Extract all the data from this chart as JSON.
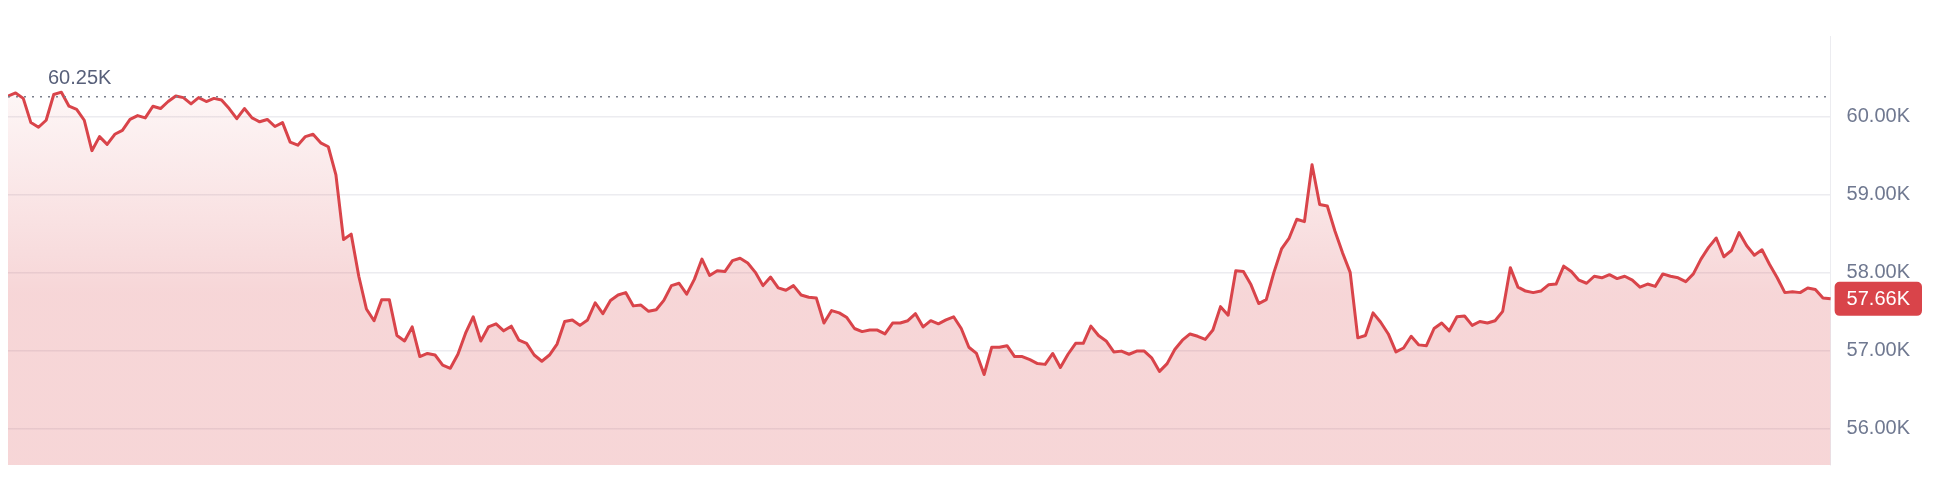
{
  "chart_data": {
    "type": "area",
    "categories": [
      null,
      null,
      null,
      null,
      null,
      null,
      null,
      null,
      null,
      null,
      null,
      null,
      null,
      null,
      null,
      null,
      null,
      null,
      null,
      null,
      null,
      null,
      null,
      null,
      null,
      null,
      null,
      null,
      null,
      null,
      null,
      null,
      null,
      null,
      null,
      null,
      null,
      null,
      null,
      null,
      null,
      null,
      null,
      null,
      null,
      null,
      null,
      null,
      null,
      null,
      null,
      null,
      null,
      null,
      null,
      null,
      null,
      null,
      null,
      null,
      null,
      null,
      null,
      null,
      null,
      null,
      null,
      null,
      null,
      null,
      null,
      null,
      null,
      null,
      null,
      null,
      null,
      null,
      null,
      null,
      null,
      null,
      null,
      null,
      null,
      null,
      null,
      null,
      null,
      null,
      null,
      null,
      null,
      null,
      null,
      null,
      null,
      null,
      null,
      null,
      null,
      null,
      null,
      null,
      null,
      null,
      null,
      null,
      null,
      null,
      null,
      null,
      null,
      null,
      null,
      null,
      null,
      null,
      null,
      null,
      null,
      null,
      null,
      null,
      null,
      null,
      null,
      null,
      null,
      null,
      null,
      null,
      null,
      null,
      null,
      null,
      null,
      null,
      null,
      null,
      null,
      null,
      null,
      null,
      null,
      null,
      null,
      null,
      null,
      null,
      null,
      null,
      null,
      null,
      null,
      null,
      null,
      null,
      null,
      null,
      null,
      null,
      null,
      null,
      null,
      null,
      null,
      null,
      null,
      null,
      null,
      null,
      null,
      null,
      null,
      null,
      null,
      null,
      null,
      null,
      null,
      null,
      null,
      null,
      null,
      null,
      null,
      null,
      null,
      null,
      null,
      null,
      null,
      null,
      null,
      null,
      null,
      null,
      null,
      null,
      null,
      null,
      null,
      null,
      null,
      null,
      null,
      null,
      null,
      null,
      null,
      null,
      null,
      null,
      null,
      null,
      null,
      null,
      null,
      null,
      null,
      null,
      null,
      null,
      null,
      null,
      null,
      null,
      null,
      null,
      null,
      null,
      null,
      null,
      null,
      null,
      null,
      null,
      null,
      null
    ],
    "series": [
      {
        "color": "#d9444a",
        "values": [
          60.26,
          60.3,
          60.23,
          59.92,
          59.86,
          59.95,
          60.28,
          60.31,
          60.13,
          60.09,
          59.95,
          59.56,
          59.74,
          59.64,
          59.77,
          59.82,
          59.96,
          60.01,
          59.98,
          60.13,
          60.1,
          60.19,
          60.26,
          60.24,
          60.16,
          60.24,
          60.19,
          60.23,
          60.21,
          60.1,
          59.97,
          60.1,
          59.98,
          59.93,
          59.96,
          59.87,
          59.92,
          59.67,
          59.63,
          59.74,
          59.77,
          59.66,
          59.61,
          59.25,
          58.42,
          58.49,
          57.95,
          57.53,
          57.38,
          57.65,
          57.65,
          57.19,
          57.12,
          57.3,
          56.92,
          56.96,
          56.94,
          56.81,
          56.77,
          56.95,
          57.22,
          57.43,
          57.12,
          57.3,
          57.34,
          57.25,
          57.31,
          57.13,
          57.09,
          56.94,
          56.86,
          56.94,
          57.08,
          57.37,
          57.39,
          57.32,
          57.39,
          57.61,
          57.47,
          57.64,
          57.71,
          57.74,
          57.57,
          57.58,
          57.5,
          57.52,
          57.64,
          57.83,
          57.86,
          57.72,
          57.91,
          58.17,
          57.96,
          58.02,
          58.01,
          58.15,
          58.18,
          58.12,
          58.0,
          57.83,
          57.94,
          57.8,
          57.77,
          57.83,
          57.71,
          57.68,
          57.67,
          57.35,
          57.51,
          57.48,
          57.42,
          57.28,
          57.24,
          57.26,
          57.26,
          57.21,
          57.35,
          57.35,
          57.38,
          57.47,
          57.3,
          57.38,
          57.34,
          57.39,
          57.43,
          57.28,
          57.04,
          56.96,
          56.69,
          57.04,
          57.04,
          57.06,
          56.92,
          56.92,
          56.88,
          56.83,
          56.82,
          56.96,
          56.78,
          56.95,
          57.09,
          57.09,
          57.31,
          57.19,
          57.12,
          56.98,
          56.99,
          56.95,
          56.99,
          56.99,
          56.9,
          56.73,
          56.83,
          57.01,
          57.13,
          57.21,
          57.18,
          57.14,
          57.26,
          57.56,
          57.45,
          58.02,
          58.01,
          57.84,
          57.6,
          57.65,
          58.0,
          58.3,
          58.44,
          58.68,
          58.65,
          59.38,
          58.87,
          58.85,
          58.53,
          58.25,
          58.0,
          57.16,
          57.19,
          57.48,
          57.36,
          57.21,
          56.98,
          57.03,
          57.18,
          57.07,
          57.06,
          57.28,
          57.35,
          57.25,
          57.43,
          57.44,
          57.32,
          57.37,
          57.35,
          57.38,
          57.5,
          58.06,
          57.81,
          57.76,
          57.74,
          57.76,
          57.84,
          57.85,
          58.08,
          58.01,
          57.9,
          57.86,
          57.95,
          57.93,
          57.97,
          57.92,
          57.95,
          57.9,
          57.81,
          57.85,
          57.82,
          57.98,
          57.95,
          57.93,
          57.88,
          57.98,
          58.17,
          58.32,
          58.44,
          58.2,
          58.28,
          58.51,
          58.34,
          58.22,
          58.29,
          58.1,
          57.93,
          57.74,
          57.75,
          57.74,
          57.8,
          57.78,
          57.67,
          57.66
        ]
      }
    ],
    "ylim": [
      55.53,
      61.03
    ],
    "yticks": [
      {
        "value": 56,
        "label": "56.00K"
      },
      {
        "value": 57,
        "label": "57.00K"
      },
      {
        "value": 58,
        "label": "58.00K"
      },
      {
        "value": 59,
        "label": "59.00K"
      },
      {
        "value": 60,
        "label": "60.00K"
      }
    ],
    "ref_lines": [
      {
        "axis": "y",
        "value": 60.25,
        "label": "60.25K",
        "line_style": "dotted",
        "color": "#7a7f8c"
      }
    ],
    "annotations": [
      "57.66K"
    ],
    "grid": "y",
    "tick_labels": "y"
  }
}
